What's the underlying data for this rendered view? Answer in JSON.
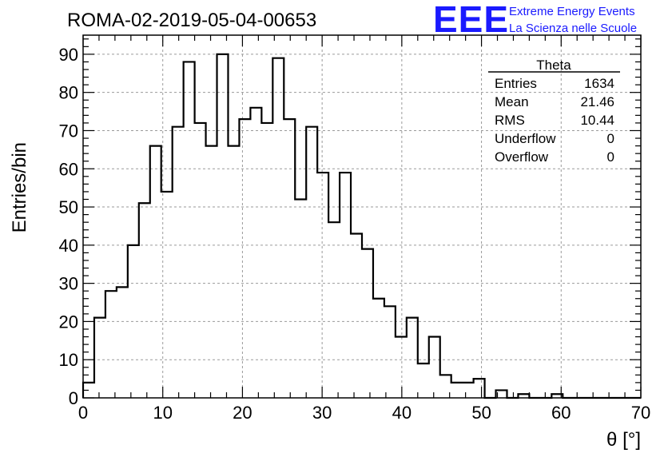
{
  "header": {
    "title": "ROMA-02-2019-05-04-00653"
  },
  "logo": {
    "mark": "EEE",
    "line1": "Extreme Energy Events",
    "line2": "La Scienza nelle Scuole",
    "color": "#1a1aff"
  },
  "stats_box": {
    "title": "Theta",
    "rows": [
      {
        "label": "Entries",
        "value": "1634"
      },
      {
        "label": "Mean",
        "value": "21.46"
      },
      {
        "label": "RMS",
        "value": "10.44"
      },
      {
        "label": "Underflow",
        "value": "0"
      },
      {
        "label": "Overflow",
        "value": "0"
      }
    ]
  },
  "chart_data": {
    "type": "histogram",
    "title": "ROMA-02-2019-05-04-00653",
    "xlabel": "θ [°]",
    "ylabel": "Entries/bin",
    "xlim": [
      0,
      70
    ],
    "ylim": [
      0,
      95
    ],
    "grid": true,
    "bin_width": 1.4,
    "bin_edges_start": 0,
    "xticks": [
      0,
      10,
      20,
      30,
      40,
      50,
      60,
      70
    ],
    "yticks": [
      0,
      10,
      20,
      30,
      40,
      50,
      60,
      70,
      80,
      90
    ],
    "values": [
      4,
      21,
      28,
      29,
      40,
      51,
      66,
      54,
      71,
      88,
      72,
      66,
      90,
      66,
      73,
      76,
      72,
      89,
      73,
      52,
      71,
      59,
      46,
      59,
      43,
      39,
      26,
      24,
      16,
      21,
      9,
      16,
      6,
      4,
      4,
      5,
      0,
      2,
      0,
      1,
      0,
      0,
      1,
      0,
      0,
      0,
      0,
      0,
      0,
      0
    ],
    "line_color": "#000000"
  }
}
